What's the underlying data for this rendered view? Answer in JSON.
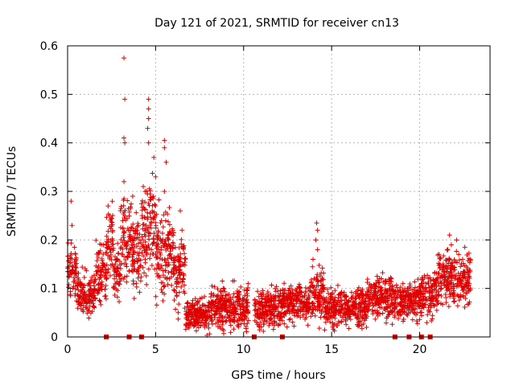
{
  "chart_data": {
    "type": "scatter",
    "title": "Day 121 of 2021, SRMTID for receiver cn13",
    "xlabel": "GPS time / hours",
    "ylabel": "SRMTID / TECUs",
    "xlim": [
      0,
      24
    ],
    "ylim": [
      0,
      0.6
    ],
    "xticks": [
      0,
      5,
      10,
      15,
      20
    ],
    "yticks": [
      0,
      0.1,
      0.2,
      0.3,
      0.4,
      0.5,
      0.6
    ],
    "xtick_labels": [
      "0",
      "5",
      "10",
      "15",
      "20"
    ],
    "ytick_labels": [
      "0",
      "0.1",
      "0.2",
      "0.3",
      "0.4",
      "0.5",
      "0.6"
    ],
    "grid": true,
    "marker": "+",
    "color": "#e00000",
    "segments": [
      {
        "x0": 0.0,
        "x1": 0.5,
        "level": 0.14,
        "spread": 0.05
      },
      {
        "x0": 0.5,
        "x1": 1.6,
        "level": 0.09,
        "spread": 0.04
      },
      {
        "x0": 1.6,
        "x1": 2.2,
        "level": 0.13,
        "spread": 0.05
      },
      {
        "x0": 2.2,
        "x1": 2.6,
        "level": 0.19,
        "spread": 0.07
      },
      {
        "x0": 2.6,
        "x1": 3.0,
        "level": 0.13,
        "spread": 0.05
      },
      {
        "x0": 3.0,
        "x1": 3.6,
        "level": 0.2,
        "spread": 0.08
      },
      {
        "x0": 3.6,
        "x1": 4.2,
        "level": 0.17,
        "spread": 0.07
      },
      {
        "x0": 4.2,
        "x1": 5.0,
        "level": 0.22,
        "spread": 0.09
      },
      {
        "x0": 5.0,
        "x1": 6.0,
        "level": 0.17,
        "spread": 0.08
      },
      {
        "x0": 6.0,
        "x1": 6.7,
        "level": 0.13,
        "spread": 0.07
      },
      {
        "x0": 6.7,
        "x1": 8.0,
        "level": 0.045,
        "spread": 0.03
      },
      {
        "x0": 8.0,
        "x1": 10.3,
        "level": 0.06,
        "spread": 0.04
      },
      {
        "x0": 10.6,
        "x1": 12.2,
        "level": 0.06,
        "spread": 0.035
      },
      {
        "x0": 12.2,
        "x1": 13.8,
        "level": 0.07,
        "spread": 0.035
      },
      {
        "x0": 13.8,
        "x1": 14.6,
        "level": 0.09,
        "spread": 0.05
      },
      {
        "x0": 14.6,
        "x1": 17.0,
        "level": 0.06,
        "spread": 0.035
      },
      {
        "x0": 17.0,
        "x1": 18.5,
        "level": 0.08,
        "spread": 0.04
      },
      {
        "x0": 18.5,
        "x1": 20.0,
        "level": 0.075,
        "spread": 0.035
      },
      {
        "x0": 20.0,
        "x1": 21.0,
        "level": 0.09,
        "spread": 0.04
      },
      {
        "x0": 21.0,
        "x1": 22.9,
        "level": 0.12,
        "spread": 0.05
      }
    ],
    "peaks": [
      [
        0.2,
        0.28
      ],
      [
        0.25,
        0.23
      ],
      [
        2.3,
        0.27
      ],
      [
        2.4,
        0.25
      ],
      [
        3.2,
        0.575
      ],
      [
        3.25,
        0.49
      ],
      [
        3.2,
        0.41
      ],
      [
        3.25,
        0.4
      ],
      [
        3.2,
        0.32
      ],
      [
        3.7,
        0.29
      ],
      [
        4.3,
        0.31
      ],
      [
        4.4,
        0.3
      ],
      [
        4.6,
        0.49
      ],
      [
        4.6,
        0.47
      ],
      [
        4.6,
        0.45
      ],
      [
        4.55,
        0.43
      ],
      [
        4.6,
        0.4
      ],
      [
        4.9,
        0.37
      ],
      [
        5.0,
        0.33
      ],
      [
        5.5,
        0.405
      ],
      [
        5.5,
        0.39
      ],
      [
        5.6,
        0.36
      ],
      [
        5.5,
        0.3
      ],
      [
        6.4,
        0.26
      ],
      [
        6.5,
        0.22
      ],
      [
        14.15,
        0.235
      ],
      [
        14.2,
        0.22
      ],
      [
        14.1,
        0.2
      ],
      [
        14.2,
        0.18
      ],
      [
        21.7,
        0.21
      ],
      [
        21.8,
        0.19
      ],
      [
        22.1,
        0.2
      ]
    ],
    "flags_x": [
      2.2,
      3.5,
      4.2,
      10.6,
      12.2,
      18.6,
      19.4,
      20.1,
      20.6
    ]
  }
}
